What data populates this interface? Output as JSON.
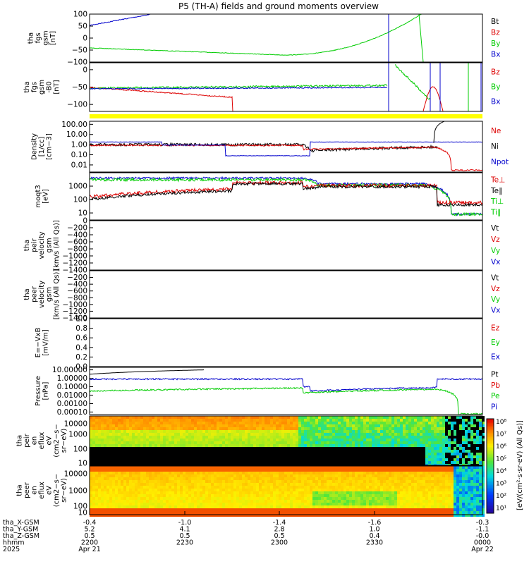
{
  "title": "P5 (TH-A) fields and ground moments overview",
  "colors": {
    "black": "#000000",
    "red": "#dd0000",
    "green": "#00cc00",
    "blue": "#0000cc",
    "yellow": "#ffff00"
  },
  "chart_data": [
    {
      "type": "line",
      "ylabel_lines": [
        "tha",
        "fgs",
        "gsm",
        "[nT]"
      ],
      "ylim": [
        -100,
        100
      ],
      "yticks": [
        "100",
        "50",
        "0",
        "−50",
        "−100"
      ],
      "legend": [
        {
          "name": "Bt",
          "color": "black"
        },
        {
          "name": "Bz",
          "color": "red"
        },
        {
          "name": "By",
          "color": "green"
        },
        {
          "name": "Bx",
          "color": "blue"
        }
      ]
    },
    {
      "type": "line",
      "ylabel_lines": [
        "tha",
        "fgs",
        "gsm",
        "-B0",
        "[nT]"
      ],
      "ylim": [
        -120,
        20
      ],
      "yticks": [
        "0",
        "−50",
        "−100"
      ],
      "legend": [
        {
          "name": "Bz",
          "color": "red"
        },
        {
          "name": "By",
          "color": "green"
        },
        {
          "name": "Bx",
          "color": "blue"
        }
      ]
    },
    {
      "type": "line",
      "scale": "log",
      "ylabel_lines": [
        "Density",
        "[1/cc]",
        "[cm−3]"
      ],
      "ylim": [
        0.002,
        200
      ],
      "yticks": [
        "100.00",
        "10.00",
        "1.00",
        "0.10",
        "0.01"
      ],
      "legend": [
        {
          "name": "Ne",
          "color": "red"
        },
        {
          "name": "Ni",
          "color": "black"
        },
        {
          "name": "Npot",
          "color": "blue"
        }
      ]
    },
    {
      "type": "line",
      "scale": "log",
      "ylabel_lines": [
        "moqt3",
        "[eV]"
      ],
      "ylim": [
        3,
        10000
      ],
      "yticks": [
        "1000",
        "100",
        "10"
      ],
      "legend": [
        {
          "name": "Te⊥",
          "color": "red"
        },
        {
          "name": "Te∥",
          "color": "black"
        },
        {
          "name": "Ti⊥",
          "color": "green"
        },
        {
          "name": "Ti∥",
          "color": "green"
        }
      ]
    },
    {
      "type": "line",
      "ylabel_lines": [
        "tha",
        "peir",
        "velocity",
        "gsm",
        "[km/s (All Qs)]"
      ],
      "ylim": [
        -1400,
        0
      ],
      "yticks": [
        "0",
        "−200",
        "−400",
        "−600",
        "−800",
        "−1000",
        "−1200",
        "−1400"
      ],
      "legend": [
        {
          "name": "Vt",
          "color": "black"
        },
        {
          "name": "Vz",
          "color": "red"
        },
        {
          "name": "Vy",
          "color": "green"
        },
        {
          "name": "Vx",
          "color": "blue"
        }
      ]
    },
    {
      "type": "line",
      "ylabel_lines": [
        "tha",
        "peer",
        "velocity",
        "gsm",
        "[km/s (All Qs)]"
      ],
      "ylim": [
        -1400,
        0
      ],
      "yticks": [
        "−200",
        "−400",
        "−600",
        "−800",
        "−1000",
        "−1200",
        "−1400"
      ],
      "legend": [
        {
          "name": "Vt",
          "color": "black"
        },
        {
          "name": "Vz",
          "color": "red"
        },
        {
          "name": "Vy",
          "color": "green"
        },
        {
          "name": "Vx",
          "color": "blue"
        }
      ]
    },
    {
      "type": "line",
      "ylabel_lines": [
        "E=−VxB",
        "[mV/m]"
      ],
      "ylim": [
        0,
        1
      ],
      "yticks": [
        "1.0",
        "0.8",
        "0.6",
        "0.4",
        "0.2",
        "0.0"
      ],
      "legend": [
        {
          "name": "Ez",
          "color": "red"
        },
        {
          "name": "Ey",
          "color": "green"
        },
        {
          "name": "Ex",
          "color": "blue"
        }
      ]
    },
    {
      "type": "line",
      "scale": "log",
      "ylabel_lines": [
        "Pressure",
        "[nPa]"
      ],
      "ylim": [
        5e-05,
        20
      ],
      "yticks": [
        "10.00000",
        "1.00000",
        "0.10000",
        "0.01000",
        "0.00100",
        "0.00010"
      ],
      "legend": [
        {
          "name": "Pt",
          "color": "black"
        },
        {
          "name": "Pb",
          "color": "red"
        },
        {
          "name": "Pe",
          "color": "green"
        },
        {
          "name": "Pi",
          "color": "blue"
        }
      ]
    },
    {
      "type": "heatmap",
      "ylabel_lines": [
        "tha",
        "peir",
        "en",
        "eflux",
        "eV",
        "(cm2−s−",
        "sr−eV)"
      ],
      "ylim": [
        5,
        20000
      ],
      "yticks": [
        "10000",
        "1000",
        "100",
        "10"
      ]
    },
    {
      "type": "heatmap",
      "ylabel_lines": [
        "tha",
        "peer",
        "en",
        "eflux",
        "eV",
        "(cm2−s−",
        "sr−eV)"
      ],
      "ylim": [
        5,
        20000
      ],
      "yticks": [
        "10000",
        "1000",
        "100",
        "10"
      ]
    }
  ],
  "colorbar": {
    "ticks": [
      "10⁸",
      "10⁷",
      "10⁶",
      "10⁵",
      "10⁴",
      "10³",
      "10²",
      "10¹"
    ],
    "label": "[eV/(cm²·s·sr·eV) (All Qs)]"
  },
  "x_axis": {
    "row_labels": [
      "tha_X-GSM",
      "tha_Y-GSM",
      "tha_Z-GSM",
      "hhmm",
      "2025"
    ],
    "columns": [
      [
        "-0.4",
        "5.2",
        "0.5",
        "2200",
        "Apr 21"
      ],
      [
        "-1.0",
        "4.1",
        "0.5",
        "2230",
        ""
      ],
      [
        "-1.4",
        "2.8",
        "0.5",
        "2300",
        ""
      ],
      [
        "-1.6",
        "1.0",
        "0.4",
        "2330",
        ""
      ],
      [
        "-0.3",
        "-1.1",
        "-0.0",
        "0000",
        "Apr 22"
      ]
    ]
  }
}
